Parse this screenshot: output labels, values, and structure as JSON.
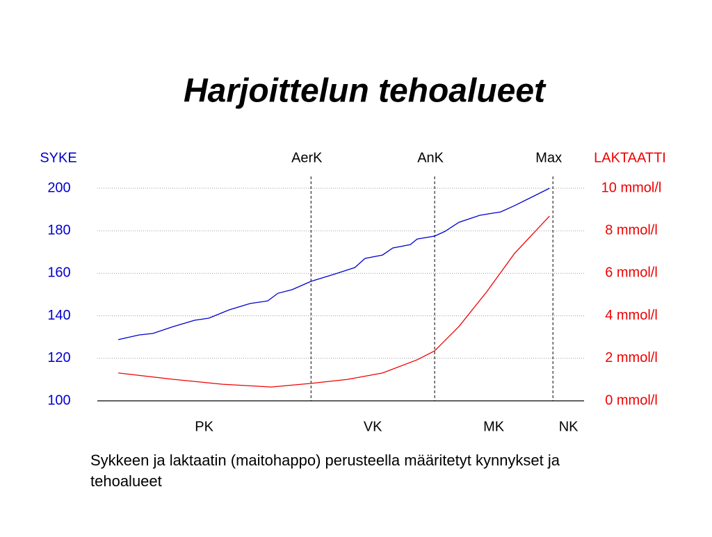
{
  "chart_data": {
    "type": "line",
    "title": "Harjoittelun tehoalueet",
    "ylabel": "SYKE",
    "y2label": "LAKTAATTI",
    "caption": "Sykkeen ja laktaatin (maitohappo) perusteella määritetyt kynnykset ja tehoalueet",
    "xlim": [
      0,
      100
    ],
    "ylim": [
      100,
      200
    ],
    "yticks": [
      100,
      120,
      140,
      160,
      180,
      200
    ],
    "y2lim": [
      0,
      10
    ],
    "y2ticks": [
      {
        "value": 0,
        "label": "0 mmol/l"
      },
      {
        "value": 2,
        "label": "2 mmol/l"
      },
      {
        "value": 4,
        "label": "4 mmol/l"
      },
      {
        "value": 6,
        "label": "6 mmol/l"
      },
      {
        "value": 8,
        "label": "8 mmol/l"
      },
      {
        "value": 10,
        "label": "10 mmol/l"
      }
    ],
    "grid": true,
    "series": [
      {
        "color": "#0000cc",
        "x": [
          4.3,
          8.6,
          11.4,
          15.7,
          20,
          22.9,
          27.1,
          31.4,
          35,
          37.1,
          40,
          43.9,
          48.6,
          52.9,
          55,
          58.6,
          60.7,
          64.3,
          65.7,
          69.3,
          71.4,
          74.3,
          78.6,
          82.9,
          85.7,
          88.6,
          92.9
        ],
        "values": [
          128.8,
          131,
          131.7,
          135,
          137.9,
          138.9,
          142.8,
          145.8,
          147,
          150.6,
          152.3,
          156.2,
          159.5,
          162.7,
          167,
          168.6,
          171.9,
          173.5,
          176.1,
          177.5,
          179.7,
          184,
          187.3,
          188.9,
          191.8,
          195.1,
          200
        ]
      },
      {
        "color": "#ee0000",
        "axis": "y2",
        "x": [
          4.3,
          15.7,
          25.7,
          35.7,
          43.9,
          51.4,
          58.6,
          65.7,
          69.3,
          74.3,
          80,
          85.7,
          92.9
        ],
        "values": [
          1.31,
          1.01,
          0.78,
          0.65,
          0.82,
          1.01,
          1.31,
          1.93,
          2.35,
          3.5,
          5.13,
          6.93,
          8.69
        ]
      }
    ],
    "thresholds": [
      {
        "label": "AerK",
        "x": 43.9
      },
      {
        "label": "AnK",
        "x": 69.3
      },
      {
        "label": "Max",
        "x": 93.6
      }
    ],
    "zones": [
      "PK",
      "VK",
      "MK",
      "NK"
    ]
  }
}
